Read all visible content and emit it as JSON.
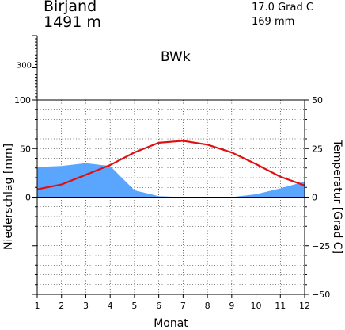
{
  "header": {
    "station": "Birjand",
    "elevation": "1491 m",
    "mean_temperature": "17.0 Grad C",
    "annual_precipitation": "169 mm",
    "climate_class": "BWk"
  },
  "colors": {
    "precipitation_fill": "#5aa6ff",
    "temperature_line": "#e01010",
    "axes": "#000000",
    "grid": "#000000"
  },
  "chart_data": {
    "type": "area",
    "categories": [
      "1",
      "2",
      "3",
      "4",
      "5",
      "6",
      "7",
      "8",
      "9",
      "10",
      "11",
      "12"
    ],
    "xlabel": "Monat",
    "ylabel_left": "Niederschlag [mm]",
    "ylabel_right": "Temperatur [Grad C]",
    "left_ticks": [
      "100",
      "50",
      "0"
    ],
    "left_ticks_upper": [
      "300"
    ],
    "right_ticks": [
      "50",
      "25",
      "0",
      "−25",
      "−50"
    ],
    "ylim_left": [
      -100,
      100
    ],
    "ylim_right": [
      -50,
      50
    ],
    "grid": true,
    "series": [
      {
        "name": "Niederschlag",
        "kind": "area",
        "axis": "left",
        "values": [
          31,
          32,
          35,
          32,
          7,
          1,
          0,
          0,
          0,
          3,
          9,
          16
        ]
      },
      {
        "name": "Temperatur",
        "kind": "line",
        "axis": "right",
        "values": [
          4,
          6.5,
          11.5,
          16.5,
          23,
          28,
          29,
          27,
          23,
          17,
          10.5,
          6
        ]
      }
    ]
  }
}
